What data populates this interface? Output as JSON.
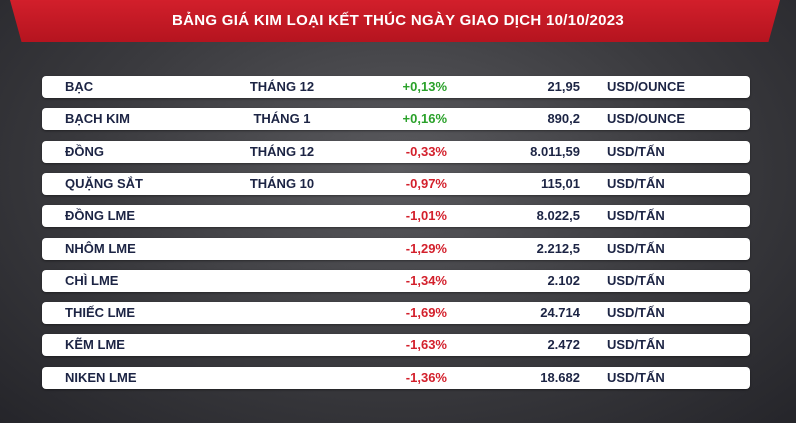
{
  "header": {
    "title": "BẢNG GIÁ KIM LOẠI KẾT THÚC NGÀY GIAO DỊCH 10/10/2023"
  },
  "table": {
    "rows": [
      {
        "name": "BẠC",
        "month": "THÁNG 12",
        "change": "+0,13%",
        "price": "21,95",
        "unit": "USD/OUNCE"
      },
      {
        "name": "BẠCH KIM",
        "month": "THÁNG 1",
        "change": "+0,16%",
        "price": "890,2",
        "unit": "USD/OUNCE"
      },
      {
        "name": "ĐỒNG",
        "month": "THÁNG 12",
        "change": "-0,33%",
        "price": "8.011,59",
        "unit": "USD/TẤN"
      },
      {
        "name": "QUẶNG SẮT",
        "month": "THÁNG 10",
        "change": "-0,97%",
        "price": "115,01",
        "unit": "USD/TẤN"
      },
      {
        "name": "ĐỒNG LME",
        "change": "-1,01%",
        "price": "8.022,5",
        "unit": "USD/TẤN"
      },
      {
        "name": "NHÔM LME",
        "change": "-1,29%",
        "price": "2.212,5",
        "unit": "USD/TẤN"
      },
      {
        "name": "CHÌ LME",
        "change": "-1,34%",
        "price": "2.102",
        "unit": "USD/TẤN"
      },
      {
        "name": "THIẾC LME",
        "change": "-1,69%",
        "price": "24.714",
        "unit": "USD/TẤN"
      },
      {
        "name": "KẼM LME",
        "change": "-1,63%",
        "price": "2.472",
        "unit": "USD/TẤN"
      },
      {
        "name": "NIKEN LME",
        "change": "-1,36%",
        "price": "18.682",
        "unit": "USD/TẤN"
      }
    ]
  }
}
